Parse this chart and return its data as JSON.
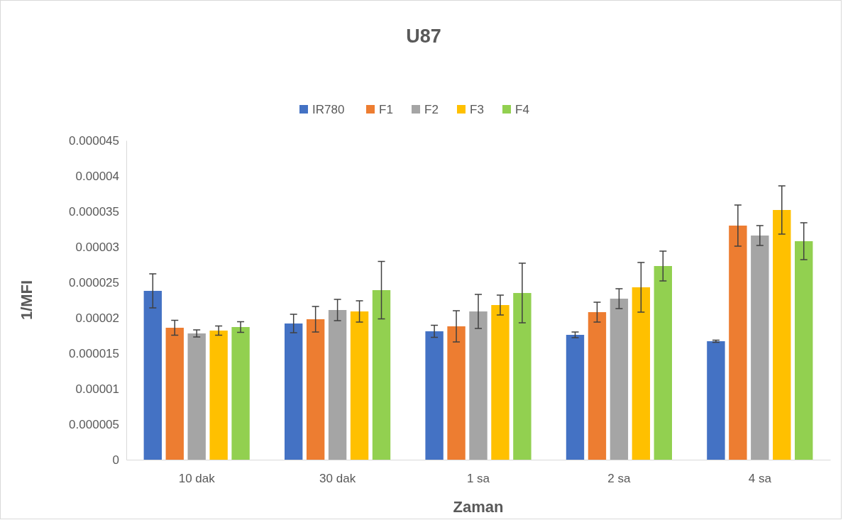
{
  "chart_data": {
    "type": "bar",
    "title": "U87",
    "xlabel": "Zaman",
    "ylabel": "1/MFI",
    "categories": [
      "10 dak",
      "30 dak",
      "1 sa",
      "2 sa",
      "4 sa"
    ],
    "series": [
      {
        "name": "IR780",
        "color": "#4472c4",
        "values": [
          2.38e-05,
          1.92e-05,
          1.81e-05,
          1.76e-05,
          1.67e-05
        ],
        "errors": [
          2.4e-06,
          1.3e-06,
          8.5e-07,
          4e-07,
          1.5e-07
        ]
      },
      {
        "name": "F1",
        "color": "#ed7d31",
        "values": [
          1.86e-05,
          1.98e-05,
          1.88e-05,
          2.08e-05,
          3.3e-05
        ],
        "errors": [
          1.05e-06,
          1.8e-06,
          2.2e-06,
          1.4e-06,
          2.9e-06
        ]
      },
      {
        "name": "F2",
        "color": "#a5a5a5",
        "values": [
          1.78e-05,
          2.11e-05,
          2.09e-05,
          2.27e-05,
          3.16e-05
        ],
        "errors": [
          5e-07,
          1.5e-06,
          2.4e-06,
          1.4e-06,
          1.4e-06
        ]
      },
      {
        "name": "F3",
        "color": "#ffc000",
        "values": [
          1.82e-05,
          2.09e-05,
          2.18e-05,
          2.43e-05,
          3.52e-05
        ],
        "errors": [
          6.5e-07,
          1.5e-06,
          1.4e-06,
          3.5e-06,
          3.4e-06
        ]
      },
      {
        "name": "F4",
        "color": "#92d050",
        "values": [
          1.87e-05,
          2.39e-05,
          2.35e-05,
          2.73e-05,
          3.08e-05
        ],
        "errors": [
          7.5e-07,
          4.05e-06,
          4.2e-06,
          2.1e-06,
          2.6e-06
        ]
      }
    ],
    "ylim": [
      0,
      4.5e-05
    ],
    "yticks": [
      {
        "value": 0,
        "label": "0"
      },
      {
        "value": 5e-06,
        "label": "0.000005"
      },
      {
        "value": 1e-05,
        "label": "0.00001"
      },
      {
        "value": 1.5e-05,
        "label": "0.000015"
      },
      {
        "value": 2e-05,
        "label": "0.00002"
      },
      {
        "value": 2.5e-05,
        "label": "0.000025"
      },
      {
        "value": 3e-05,
        "label": "0.00003"
      },
      {
        "value": 3.5e-05,
        "label": "0.000035"
      },
      {
        "value": 4e-05,
        "label": "0.00004"
      },
      {
        "value": 4.5e-05,
        "label": "0.000045"
      }
    ],
    "grid": false,
    "legend": "top"
  }
}
